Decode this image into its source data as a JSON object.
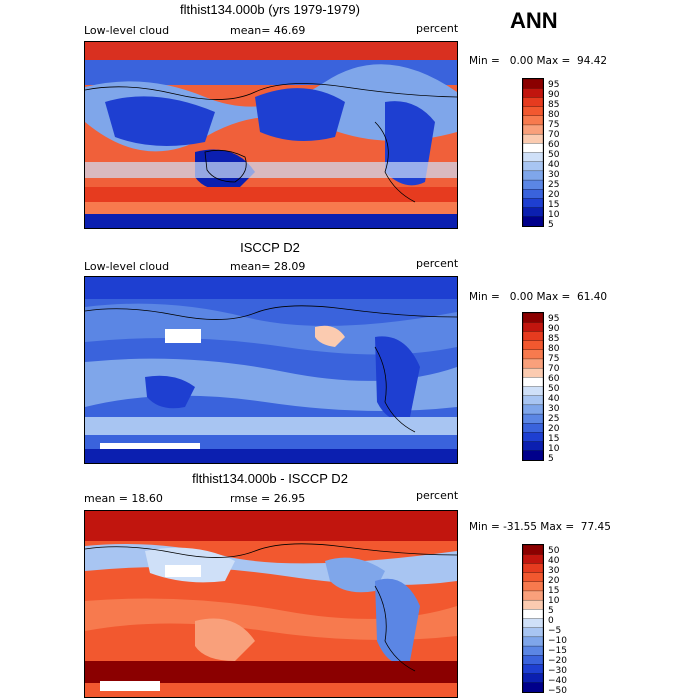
{
  "season": "ANN",
  "panels": [
    {
      "title": "flthist134.000b (yrs 1979-1979)",
      "left_label": "Low-level cloud",
      "center_label": "mean=  46.69",
      "right_label": "percent",
      "minmax": "Min =   0.00 Max =  94.42",
      "colorbar_labels": [
        "95",
        "90",
        "85",
        "80",
        "75",
        "70",
        "60",
        "50",
        "40",
        "30",
        "25",
        "20",
        "15",
        "10",
        "5"
      ],
      "colorbar_colors": [
        "#8b0000",
        "#c1150e",
        "#e63b1f",
        "#f2582f",
        "#f77a4e",
        "#f9a07b",
        "#fbcbb0",
        "#ffffff",
        "#cfe0f8",
        "#a8c5f2",
        "#7fa6ea",
        "#5b86e4",
        "#3a63dc",
        "#1e3fd1",
        "#0b1fb0",
        "#00008b"
      ]
    },
    {
      "title": "ISCCP D2",
      "left_label": "Low-level cloud",
      "center_label": "mean=  28.09",
      "right_label": "percent",
      "minmax": "Min =   0.00 Max =  61.40",
      "colorbar_labels": [
        "95",
        "90",
        "85",
        "80",
        "75",
        "70",
        "60",
        "50",
        "40",
        "30",
        "25",
        "20",
        "15",
        "10",
        "5"
      ],
      "colorbar_colors": [
        "#8b0000",
        "#c1150e",
        "#e63b1f",
        "#f2582f",
        "#f77a4e",
        "#f9a07b",
        "#fbcbb0",
        "#ffffff",
        "#cfe0f8",
        "#a8c5f2",
        "#7fa6ea",
        "#5b86e4",
        "#3a63dc",
        "#1e3fd1",
        "#0b1fb0",
        "#00008b"
      ]
    },
    {
      "title": "flthist134.000b - ISCCP D2",
      "left_label": "mean =  18.60",
      "center_label": "rmse =  26.95",
      "right_label": "percent",
      "minmax": "Min = -31.55 Max =  77.45",
      "colorbar_labels": [
        "50",
        "40",
        "30",
        "20",
        "15",
        "10",
        "5",
        "0",
        "−5",
        "−10",
        "−15",
        "−20",
        "−30",
        "−40",
        "−50"
      ],
      "colorbar_colors": [
        "#8b0000",
        "#c1150e",
        "#e63b1f",
        "#f2582f",
        "#f77a4e",
        "#f9a07b",
        "#fbcbb0",
        "#ffffff",
        "#cfe0f8",
        "#a8c5f2",
        "#7fa6ea",
        "#5b86e4",
        "#3a63dc",
        "#1e3fd1",
        "#0b1fb0",
        "#00008b"
      ]
    }
  ]
}
